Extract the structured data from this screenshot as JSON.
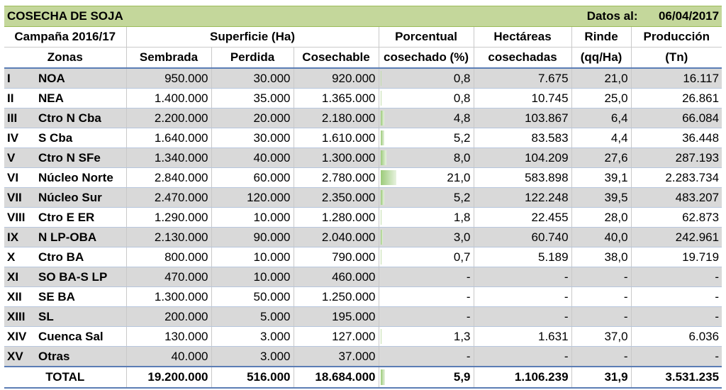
{
  "header": {
    "title": "COSECHA DE SOJA",
    "date_label": "Datos al:",
    "date_value": "06/04/2017"
  },
  "columns": {
    "campaign": "Campaña 2016/17",
    "zones": "Zonas",
    "surface": "Superficie (Ha)",
    "sown": "Sembrada",
    "lost": "Perdida",
    "harvestable": "Cosechable",
    "pct_line1": "Porcentual",
    "pct_line2": "cosechado (%)",
    "ha_line1": "Hectáreas",
    "ha_line2": "cosechadas",
    "yield_line1": "Rinde",
    "yield_line2": "(qq/Ha)",
    "prod_line1": "Producción",
    "prod_line2": "(Tn)"
  },
  "rows": [
    {
      "id": "I",
      "zone": "NOA",
      "sown": "950.000",
      "lost": "30.000",
      "harvestable": "920.000",
      "pct": "0,8",
      "pct_value": 0.8,
      "harvested": "7.675",
      "yield": "21,0",
      "production": "16.117"
    },
    {
      "id": "II",
      "zone": "NEA",
      "sown": "1.400.000",
      "lost": "35.000",
      "harvestable": "1.365.000",
      "pct": "0,8",
      "pct_value": 0.8,
      "harvested": "10.745",
      "yield": "25,0",
      "production": "26.861"
    },
    {
      "id": "III",
      "zone": "Ctro N Cba",
      "sown": "2.200.000",
      "lost": "20.000",
      "harvestable": "2.180.000",
      "pct": "4,8",
      "pct_value": 4.8,
      "harvested": "103.867",
      "yield": "6,4",
      "production": "66.084"
    },
    {
      "id": "IV",
      "zone": "S Cba",
      "sown": "1.640.000",
      "lost": "30.000",
      "harvestable": "1.610.000",
      "pct": "5,2",
      "pct_value": 5.2,
      "harvested": "83.583",
      "yield": "4,4",
      "production": "36.448"
    },
    {
      "id": "V",
      "zone": "Ctro N SFe",
      "sown": "1.340.000",
      "lost": "40.000",
      "harvestable": "1.300.000",
      "pct": "8,0",
      "pct_value": 8.0,
      "harvested": "104.209",
      "yield": "27,6",
      "production": "287.193"
    },
    {
      "id": "VI",
      "zone": "Núcleo Norte",
      "sown": "2.840.000",
      "lost": "60.000",
      "harvestable": "2.780.000",
      "pct": "21,0",
      "pct_value": 21.0,
      "harvested": "583.898",
      "yield": "39,1",
      "production": "2.283.734"
    },
    {
      "id": "VII",
      "zone": "Núcleo Sur",
      "sown": "2.470.000",
      "lost": "120.000",
      "harvestable": "2.350.000",
      "pct": "5,2",
      "pct_value": 5.2,
      "harvested": "122.248",
      "yield": "39,5",
      "production": "483.207"
    },
    {
      "id": "VIII",
      "zone": "Ctro E ER",
      "sown": "1.290.000",
      "lost": "10.000",
      "harvestable": "1.280.000",
      "pct": "1,8",
      "pct_value": 1.8,
      "harvested": "22.455",
      "yield": "28,0",
      "production": "62.873"
    },
    {
      "id": "IX",
      "zone": "N LP-OBA",
      "sown": "2.130.000",
      "lost": "90.000",
      "harvestable": "2.040.000",
      "pct": "3,0",
      "pct_value": 3.0,
      "harvested": "60.740",
      "yield": "40,0",
      "production": "242.961"
    },
    {
      "id": "X",
      "zone": "Ctro BA",
      "sown": "800.000",
      "lost": "10.000",
      "harvestable": "790.000",
      "pct": "0,7",
      "pct_value": 0.7,
      "harvested": "5.189",
      "yield": "38,0",
      "production": "19.719"
    },
    {
      "id": "XI",
      "zone": "SO BA-S LP",
      "sown": "470.000",
      "lost": "10.000",
      "harvestable": "460.000",
      "pct": "-",
      "pct_value": 0,
      "harvested": "-",
      "yield": "-",
      "production": "-"
    },
    {
      "id": "XII",
      "zone": "SE BA",
      "sown": "1.300.000",
      "lost": "50.000",
      "harvestable": "1.250.000",
      "pct": "-",
      "pct_value": 0,
      "harvested": "-",
      "yield": "-",
      "production": "-"
    },
    {
      "id": "XIII",
      "zone": "SL",
      "sown": "200.000",
      "lost": "5.000",
      "harvestable": "195.000",
      "pct": "-",
      "pct_value": 0,
      "harvested": "-",
      "yield": "-",
      "production": "-"
    },
    {
      "id": "XIV",
      "zone": "Cuenca Sal",
      "sown": "130.000",
      "lost": "3.000",
      "harvestable": "127.000",
      "pct": "1,3",
      "pct_value": 1.3,
      "harvested": "1.631",
      "yield": "37,0",
      "production": "6.036"
    },
    {
      "id": "XV",
      "zone": "Otras",
      "sown": "40.000",
      "lost": "3.000",
      "harvestable": "37.000",
      "pct": "-",
      "pct_value": 0,
      "harvested": "-",
      "yield": "-",
      "production": "-"
    }
  ],
  "total": {
    "label": "TOTAL",
    "sown": "19.200.000",
    "lost": "516.000",
    "harvestable": "18.684.000",
    "pct": "5,9",
    "pct_value": 5.9,
    "harvested": "1.106.239",
    "yield": "31,9",
    "production": "3.531.235"
  },
  "colors": {
    "title_bg": "#c4d79b",
    "row_alt": "#d9d9d9",
    "bar_green": "#9ccb7a",
    "rule_blue": "#5b7db5"
  }
}
